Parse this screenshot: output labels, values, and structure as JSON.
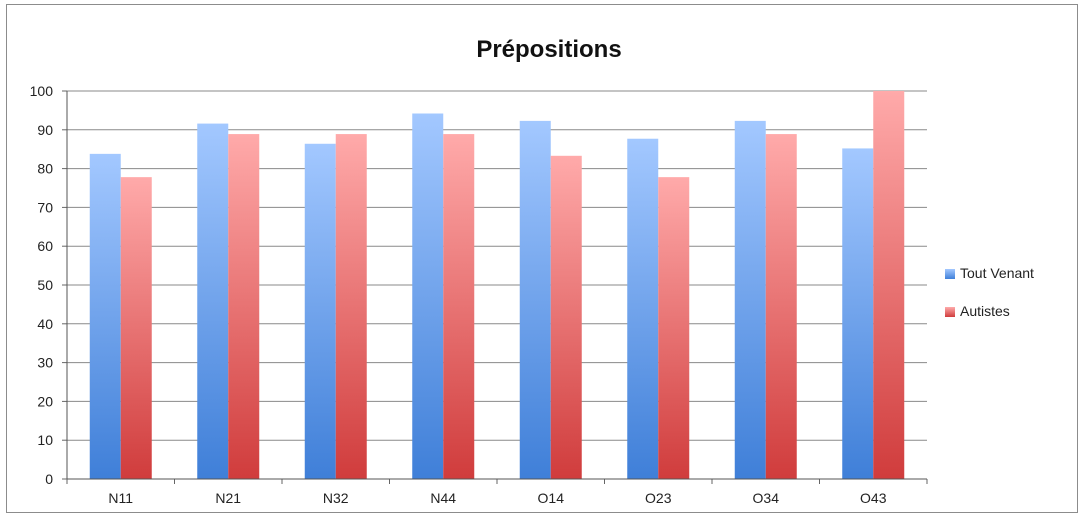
{
  "chart_data": {
    "type": "bar",
    "title": "Prépositions",
    "xlabel": "",
    "ylabel": "",
    "categories": [
      "N11",
      "N21",
      "N32",
      "N44",
      "O14",
      "O23",
      "O34",
      "O43"
    ],
    "series": [
      {
        "name": "Tout Venant",
        "values": [
          83.8,
          91.6,
          86.4,
          94.2,
          92.3,
          87.7,
          92.3,
          85.2
        ],
        "color": "#6fa7ee"
      },
      {
        "name": "Autistes",
        "values": [
          77.8,
          88.9,
          88.9,
          88.9,
          83.3,
          77.8,
          88.9,
          100
        ],
        "color": "#e86e6e"
      }
    ],
    "ylim": [
      0,
      100
    ],
    "yticks": [
      0,
      10,
      20,
      30,
      40,
      50,
      60,
      70,
      80,
      90,
      100
    ],
    "grid": true,
    "legend_position": "right"
  }
}
